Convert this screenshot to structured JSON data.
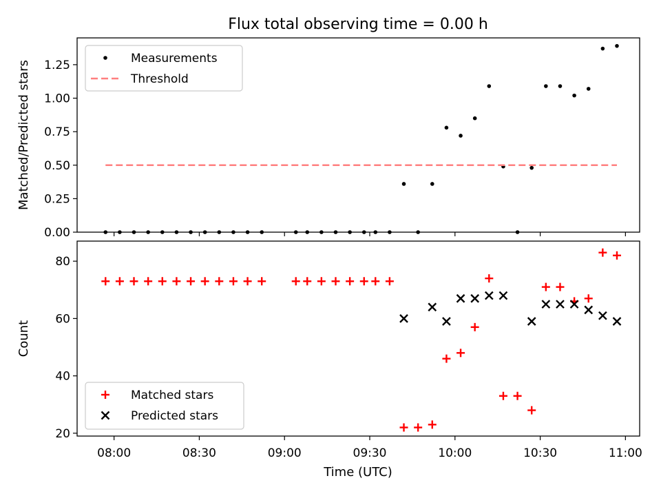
{
  "figure": {
    "title": "Flux total observing time = 0.00 h",
    "xlabel": "Time (UTC)"
  },
  "chart_data": [
    {
      "type": "scatter",
      "ylabel": "Matched/Predicted stars",
      "xlim": [
        "07:47",
        "11:05"
      ],
      "ylim": [
        0,
        1.45
      ],
      "xticks": [
        "08:00",
        "08:30",
        "09:00",
        "09:30",
        "10:00",
        "10:30",
        "11:00"
      ],
      "yticks": [
        "0.00",
        "0.25",
        "0.50",
        "0.75",
        "1.00",
        "1.25"
      ],
      "legend_position": "top-left",
      "series": [
        {
          "name": "Measurements",
          "marker": "dot",
          "color": "#000000",
          "points": [
            [
              "07:57",
              0
            ],
            [
              "08:02",
              0
            ],
            [
              "08:07",
              0
            ],
            [
              "08:12",
              0
            ],
            [
              "08:17",
              0
            ],
            [
              "08:22",
              0
            ],
            [
              "08:27",
              0
            ],
            [
              "08:32",
              0
            ],
            [
              "08:37",
              0
            ],
            [
              "08:42",
              0
            ],
            [
              "08:47",
              0
            ],
            [
              "08:52",
              0
            ],
            [
              "09:04",
              0
            ],
            [
              "09:08",
              0
            ],
            [
              "09:13",
              0
            ],
            [
              "09:18",
              0
            ],
            [
              "09:23",
              0
            ],
            [
              "09:28",
              0
            ],
            [
              "09:32",
              0
            ],
            [
              "09:37",
              0
            ],
            [
              "09:42",
              0.36
            ],
            [
              "09:47",
              0
            ],
            [
              "09:52",
              0.36
            ],
            [
              "09:57",
              0.78
            ],
            [
              "10:02",
              0.72
            ],
            [
              "10:07",
              0.85
            ],
            [
              "10:12",
              1.09
            ],
            [
              "10:17",
              0.49
            ],
            [
              "10:22",
              0
            ],
            [
              "10:27",
              0.48
            ],
            [
              "10:32",
              1.09
            ],
            [
              "10:37",
              1.09
            ],
            [
              "10:42",
              1.02
            ],
            [
              "10:47",
              1.07
            ],
            [
              "10:52",
              1.37
            ],
            [
              "10:57",
              1.39
            ]
          ]
        },
        {
          "name": "Threshold",
          "marker": "dashed-line",
          "color": "#ff7f7f",
          "points": [
            [
              "07:57",
              0.5
            ],
            [
              "10:57",
              0.5
            ]
          ]
        }
      ]
    },
    {
      "type": "scatter",
      "ylabel": "Count",
      "xlim": [
        "07:47",
        "11:05"
      ],
      "ylim": [
        19,
        87
      ],
      "xticks": [
        "08:00",
        "08:30",
        "09:00",
        "09:30",
        "10:00",
        "10:30",
        "11:00"
      ],
      "yticks": [
        "20",
        "40",
        "60",
        "80"
      ],
      "legend_position": "bottom-left",
      "series": [
        {
          "name": "Matched stars",
          "marker": "plus",
          "color": "#ff0000",
          "points": [
            [
              "07:57",
              73
            ],
            [
              "08:02",
              73
            ],
            [
              "08:07",
              73
            ],
            [
              "08:12",
              73
            ],
            [
              "08:17",
              73
            ],
            [
              "08:22",
              73
            ],
            [
              "08:27",
              73
            ],
            [
              "08:32",
              73
            ],
            [
              "08:37",
              73
            ],
            [
              "08:42",
              73
            ],
            [
              "08:47",
              73
            ],
            [
              "08:52",
              73
            ],
            [
              "09:04",
              73
            ],
            [
              "09:08",
              73
            ],
            [
              "09:13",
              73
            ],
            [
              "09:18",
              73
            ],
            [
              "09:23",
              73
            ],
            [
              "09:28",
              73
            ],
            [
              "09:32",
              73
            ],
            [
              "09:37",
              73
            ],
            [
              "09:42",
              22
            ],
            [
              "09:47",
              22
            ],
            [
              "09:52",
              23
            ],
            [
              "09:57",
              46
            ],
            [
              "10:02",
              48
            ],
            [
              "10:07",
              57
            ],
            [
              "10:12",
              74
            ],
            [
              "10:17",
              33
            ],
            [
              "10:22",
              33
            ],
            [
              "10:27",
              28
            ],
            [
              "10:32",
              71
            ],
            [
              "10:37",
              71
            ],
            [
              "10:42",
              66
            ],
            [
              "10:47",
              67
            ],
            [
              "10:52",
              83
            ],
            [
              "10:57",
              82
            ]
          ]
        },
        {
          "name": "Predicted stars",
          "marker": "x",
          "color": "#000000",
          "points": [
            [
              "09:42",
              60
            ],
            [
              "09:52",
              64
            ],
            [
              "09:57",
              59
            ],
            [
              "10:02",
              67
            ],
            [
              "10:07",
              67
            ],
            [
              "10:12",
              68
            ],
            [
              "10:17",
              68
            ],
            [
              "10:27",
              59
            ],
            [
              "10:32",
              65
            ],
            [
              "10:37",
              65
            ],
            [
              "10:42",
              65
            ],
            [
              "10:47",
              63
            ],
            [
              "10:52",
              61
            ],
            [
              "10:57",
              59
            ]
          ]
        }
      ]
    }
  ]
}
